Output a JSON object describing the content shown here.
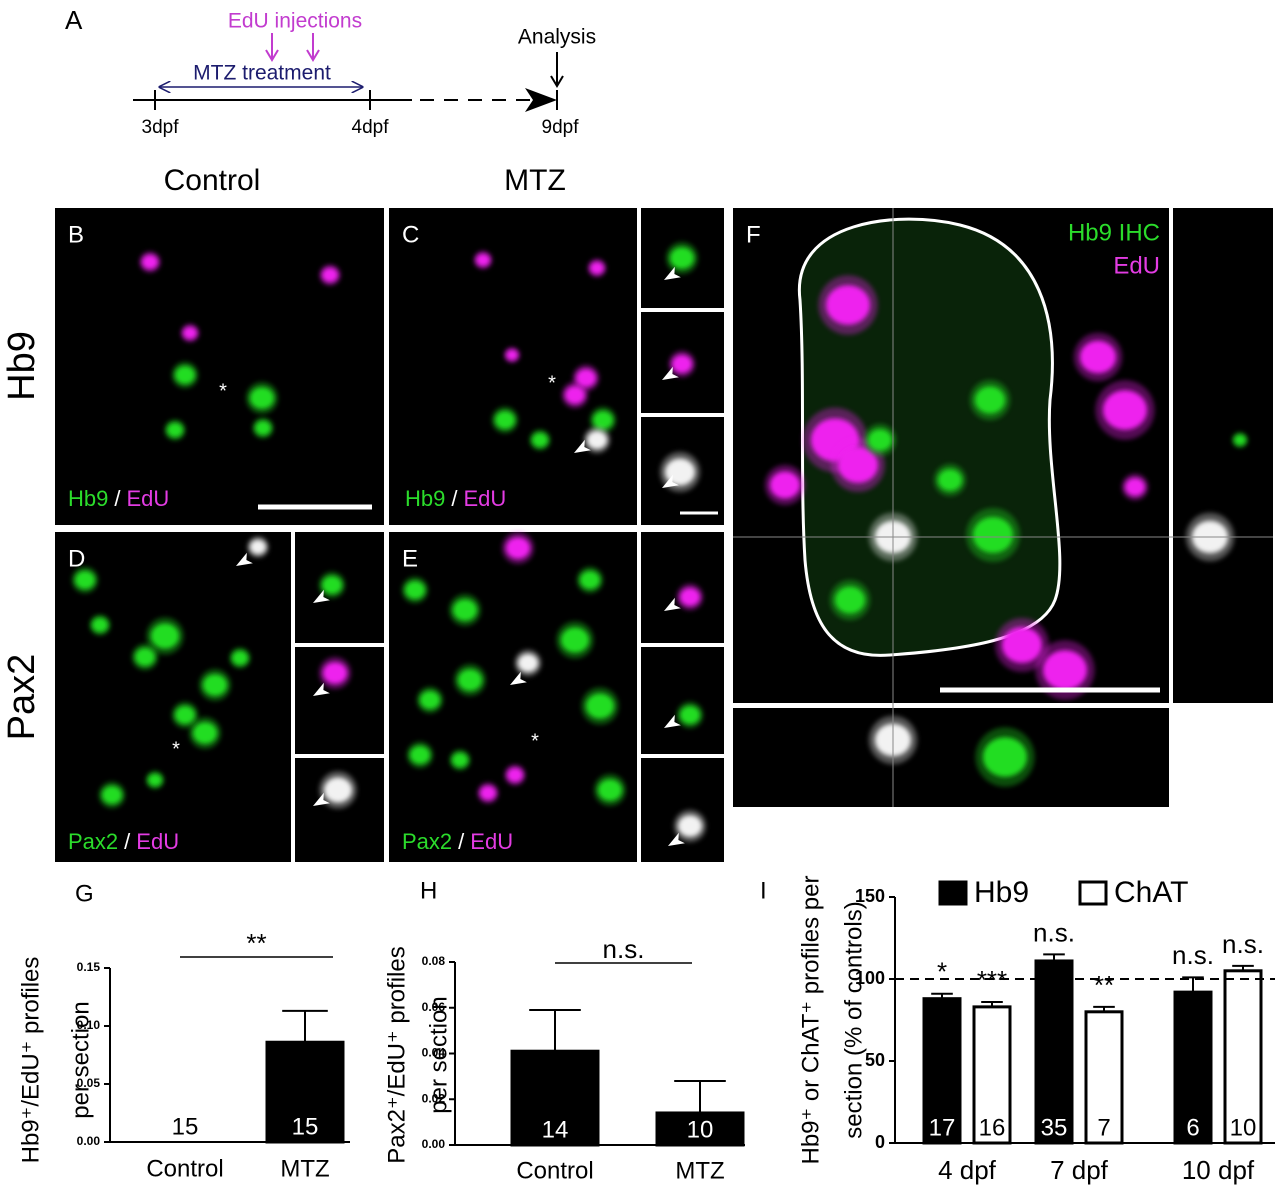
{
  "panel_a": {
    "label": "A",
    "injections": "EdU injections",
    "treatment": "MTZ treatment",
    "analysis": "Analysis",
    "timepoints": [
      "3dpf",
      "4dpf",
      "9dpf"
    ]
  },
  "column_headers": [
    "Control",
    "MTZ"
  ],
  "row_headers": [
    "Hb9",
    "Pax2"
  ],
  "stain_separator": "/",
  "asterisk": "*",
  "images": [
    {
      "label": "B",
      "stains": [
        "Hb9",
        "EdU"
      ]
    },
    {
      "label": "C",
      "stains": [
        "Hb9",
        "EdU"
      ]
    },
    {
      "label": "D",
      "stains": [
        "Pax2",
        "EdU"
      ]
    },
    {
      "label": "E",
      "stains": [
        "Pax2",
        "EdU"
      ]
    }
  ],
  "panel_f": {
    "label": "F",
    "stains": [
      "Hb9 IHC",
      "EdU"
    ]
  },
  "chart_data": [
    {
      "type": "bar",
      "label": "G",
      "y_label": [
        "Hb9⁺/EdU⁺ profiles",
        "per section"
      ],
      "categories": [
        "Control",
        "MTZ"
      ],
      "values": [
        0,
        0.086
      ],
      "errors": [
        0,
        0.027
      ],
      "n": [
        15,
        15
      ],
      "color": "#000000",
      "ylim": [
        0,
        0.15
      ],
      "yticks": [
        {
          "value": 0,
          "label": "0.00"
        },
        {
          "value": 0.05,
          "label": "0.05"
        },
        {
          "value": 0.1,
          "label": "0.10"
        },
        {
          "value": 0.15,
          "label": "0.15"
        }
      ],
      "comparison": "**"
    },
    {
      "type": "bar",
      "label": "H",
      "y_label": [
        "Pax2⁺/EdU⁺ profiles",
        "per section"
      ],
      "categories": [
        "Control",
        "MTZ"
      ],
      "values": [
        0.041,
        0.014
      ],
      "errors": [
        0.018,
        0.014
      ],
      "n": [
        14,
        10
      ],
      "color": "#000000",
      "ylim": [
        0,
        0.08
      ],
      "yticks": [
        {
          "value": 0,
          "label": "0.00"
        },
        {
          "value": 0.02,
          "label": "0.02"
        },
        {
          "value": 0.04,
          "label": "0.04"
        },
        {
          "value": 0.06,
          "label": "0.06"
        },
        {
          "value": 0.08,
          "label": "0.08"
        }
      ],
      "comparison": "n.s."
    },
    {
      "type": "bar",
      "label": "I",
      "y_label": [
        "Hb9⁺ or ChAT⁺ profiles per",
        "section (% of controls)"
      ],
      "categories": [
        "4 dpf",
        "7 dpf",
        "10 dpf"
      ],
      "series": [
        {
          "name": "Hb9",
          "color": "#000000",
          "values": [
            88,
            111,
            92
          ],
          "errors": [
            3,
            4,
            9
          ],
          "n": [
            17,
            35,
            6
          ],
          "significance": [
            "*",
            "n.s.",
            "n.s."
          ]
        },
        {
          "name": "ChAT",
          "color": "#ffffff",
          "values": [
            83,
            80,
            105
          ],
          "errors": [
            3,
            3,
            3
          ],
          "n": [
            16,
            7,
            10
          ],
          "significance": [
            "***",
            "**",
            "n.s."
          ]
        }
      ],
      "ylim": [
        0,
        150
      ],
      "yticks": [
        0,
        50,
        100,
        150
      ],
      "reference_line": 100
    }
  ]
}
